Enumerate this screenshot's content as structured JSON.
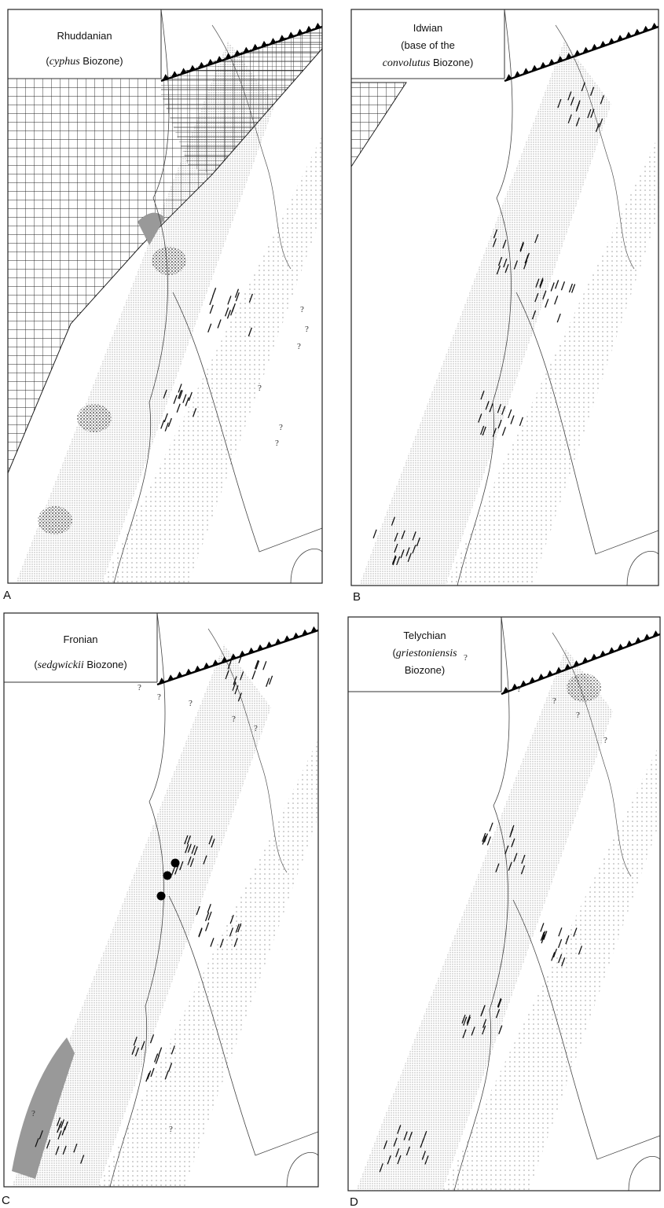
{
  "panels": [
    {
      "letter": "A",
      "label_lines": [
        [
          {
            "text": "Rhuddanian",
            "italic": false
          }
        ],
        [
          {
            "text": "(",
            "italic": false
          },
          {
            "text": "cyphus",
            "italic": true
          },
          {
            "text": " Biozone)",
            "italic": false
          }
        ]
      ],
      "query_marks": [
        "?",
        "?",
        "?",
        "?",
        "?",
        "?"
      ]
    },
    {
      "letter": "B",
      "label_lines": [
        [
          {
            "text": "Idwian",
            "italic": false
          }
        ],
        [
          {
            "text": "(base of the",
            "italic": false
          }
        ],
        [
          {
            "text": "convolutus",
            "italic": true
          },
          {
            "text": " Biozone)",
            "italic": false
          }
        ]
      ],
      "query_marks": []
    },
    {
      "letter": "C",
      "label_lines": [
        [
          {
            "text": "Fronian",
            "italic": false
          }
        ],
        [
          {
            "text": "(",
            "italic": false
          },
          {
            "text": "sedgwickii",
            "italic": true
          },
          {
            "text": " Biozone)",
            "italic": false
          }
        ]
      ],
      "query_marks": [
        "?",
        "?",
        "?",
        "?",
        "?",
        "?",
        "?"
      ]
    },
    {
      "letter": "D",
      "label_lines": [
        [
          {
            "text": "Telychian",
            "italic": false
          }
        ],
        [
          {
            "text": "(",
            "italic": false
          },
          {
            "text": "griestoniensis",
            "italic": true
          }
        ],
        [
          {
            "text": "Biozone)",
            "italic": false
          }
        ]
      ],
      "query_marks": [
        "?",
        "?",
        "?",
        "?",
        "?"
      ]
    }
  ]
}
